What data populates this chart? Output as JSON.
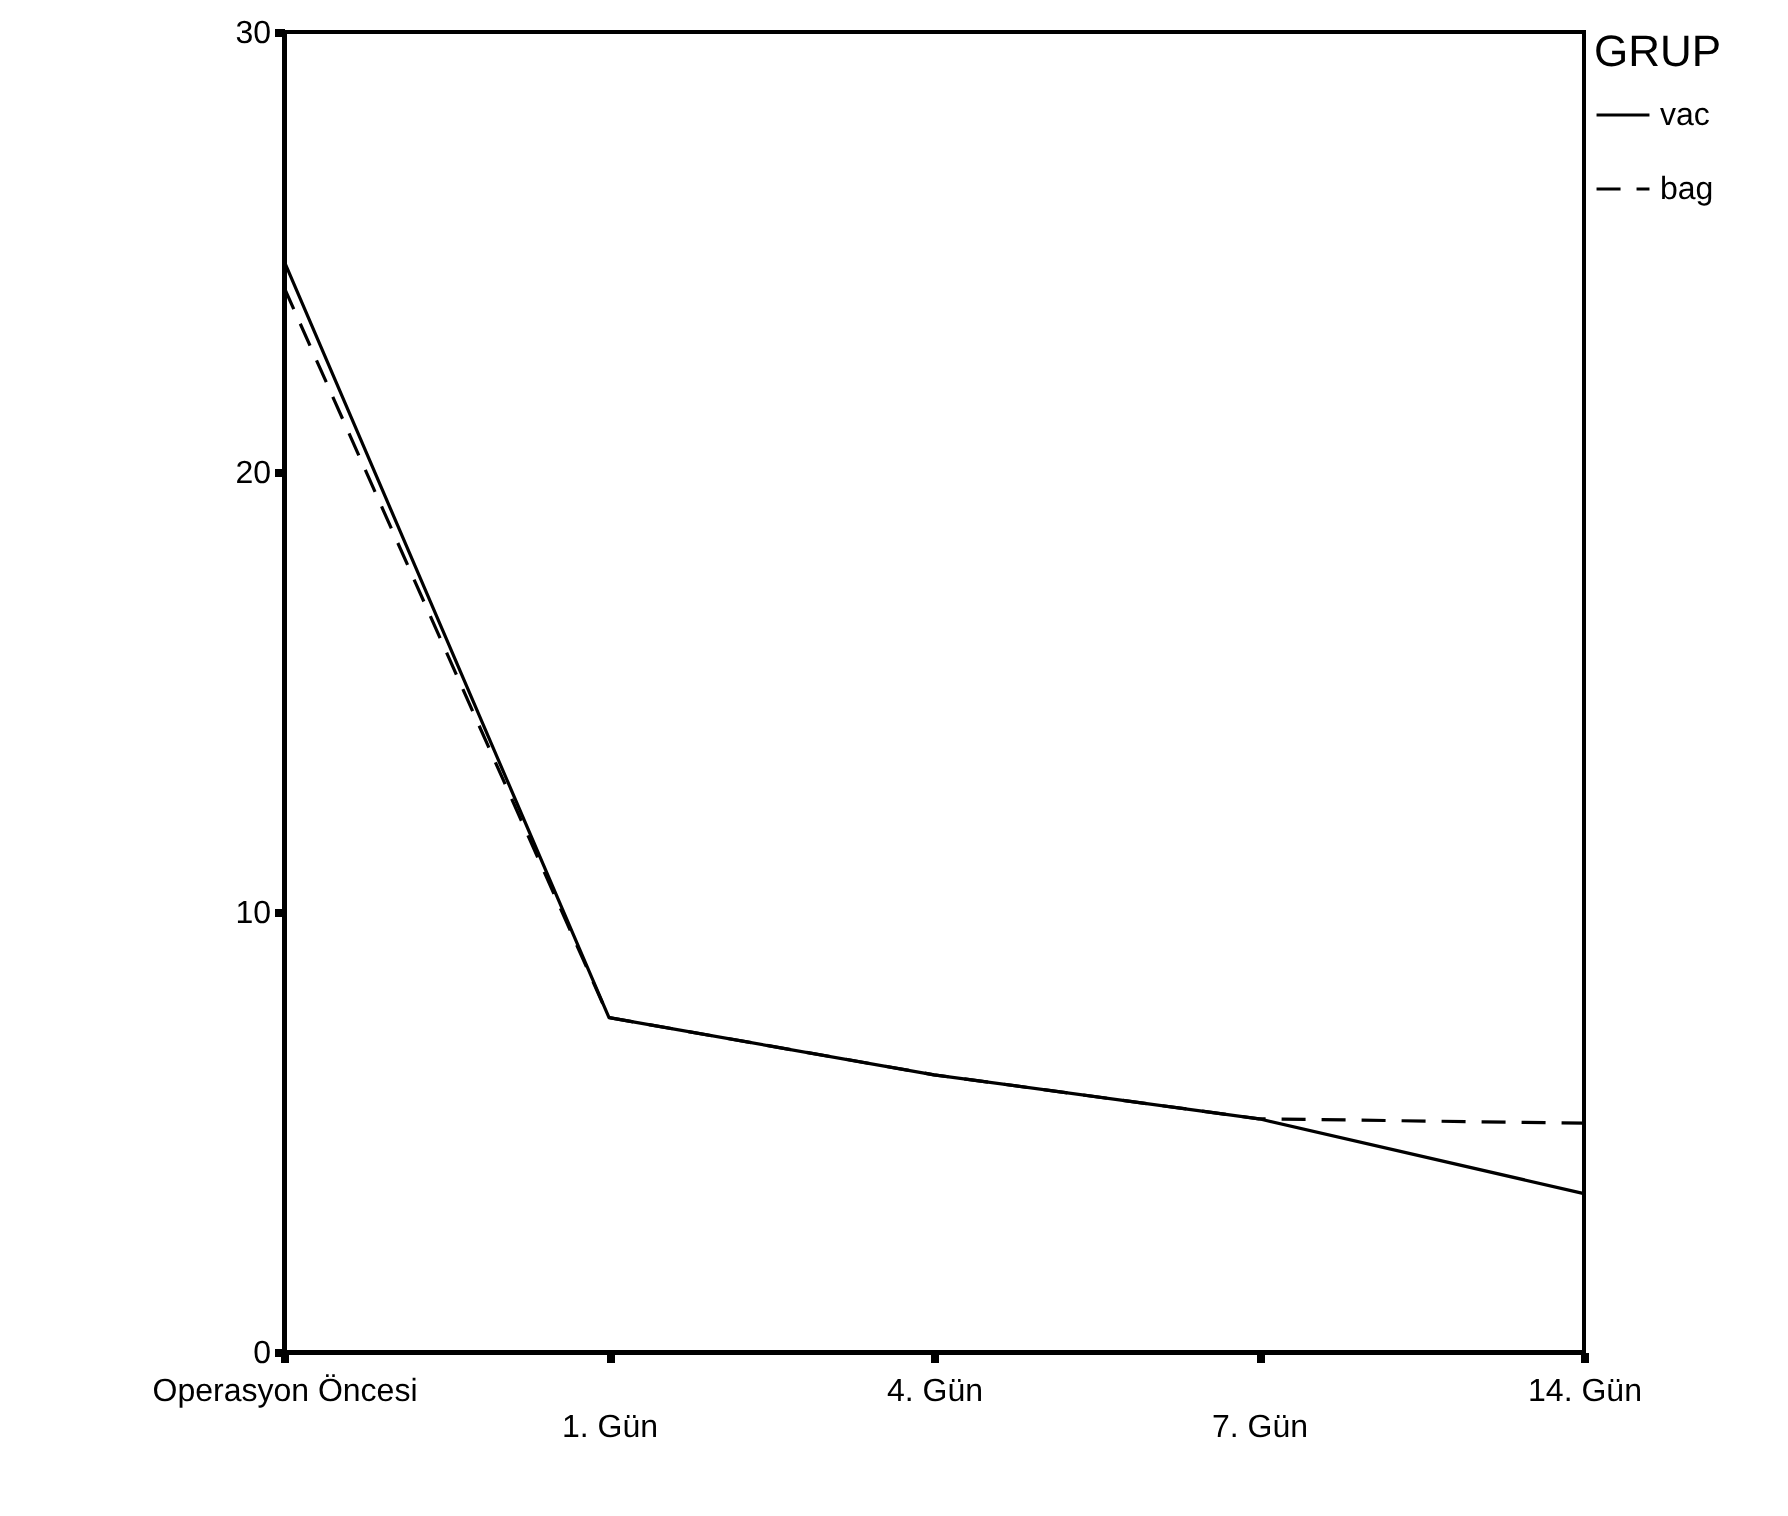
{
  "chart_data": {
    "type": "line",
    "legend_title": "GRUP",
    "legend": "right",
    "grid": false,
    "marker": "none",
    "categories": [
      "Operasyon Öncesi",
      "1. Gün",
      "4. Gün",
      "7. Gün",
      "14. Gün"
    ],
    "ylim": [
      0,
      30
    ],
    "yticks": [
      0,
      10,
      20,
      30
    ],
    "series": [
      {
        "name": "vac",
        "color": "#000000",
        "line_style": "solid",
        "values": [
          24.8,
          7.6,
          6.3,
          5.3,
          3.6
        ]
      },
      {
        "name": "bag",
        "color": "#000000",
        "line_style": "dashed",
        "values": [
          24.2,
          7.6,
          6.3,
          5.3,
          5.2
        ]
      }
    ]
  }
}
